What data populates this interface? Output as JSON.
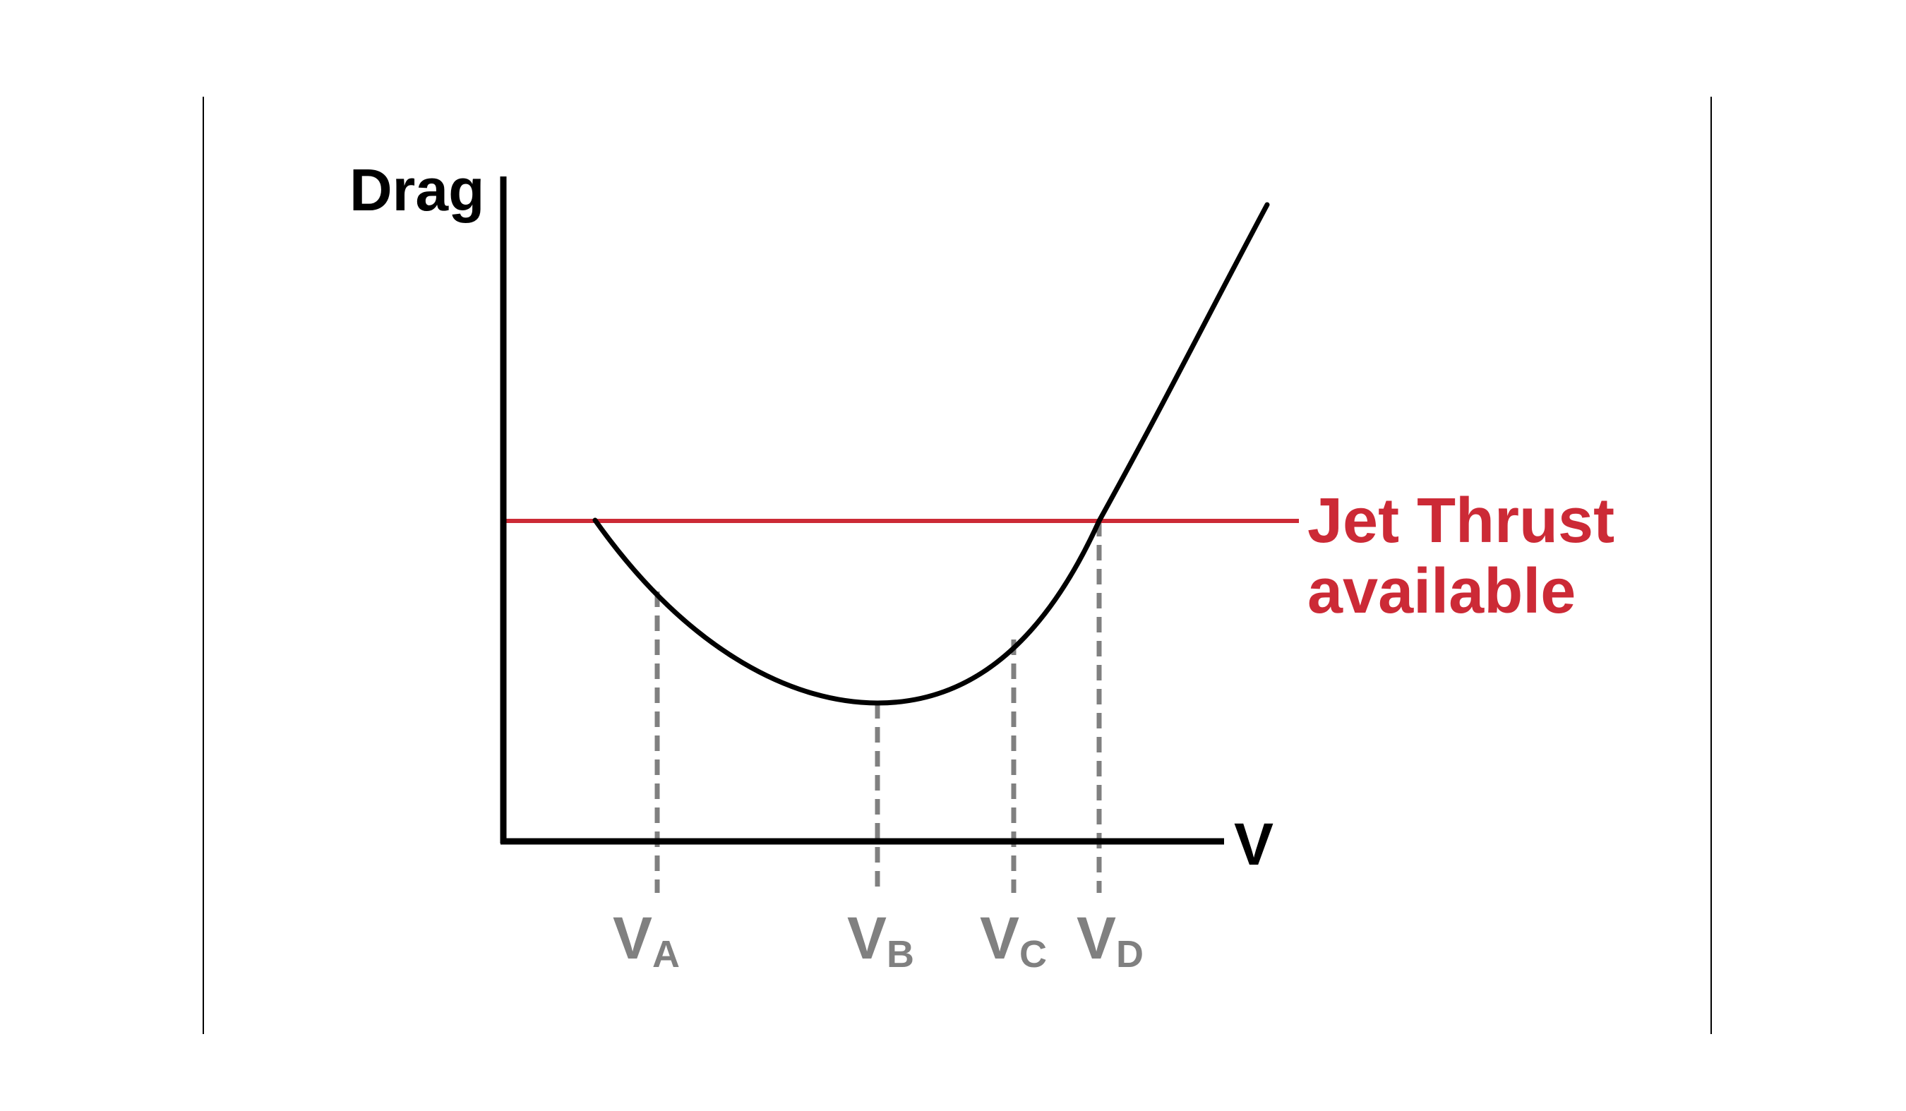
{
  "diagram": {
    "y_axis_label": "Drag",
    "x_axis_label": "V",
    "thrust_line": {
      "label_line1": "Jet Thrust",
      "label_line2": "available",
      "color": "#cc2a36"
    },
    "curve": {
      "name": "drag curve",
      "color": "#000000"
    },
    "speed_markers": [
      {
        "main": "V",
        "sub": "A"
      },
      {
        "main": "V",
        "sub": "B"
      },
      {
        "main": "V",
        "sub": "C"
      },
      {
        "main": "V",
        "sub": "D"
      }
    ],
    "marker_color": "#808080",
    "frame_color": "#000000"
  }
}
